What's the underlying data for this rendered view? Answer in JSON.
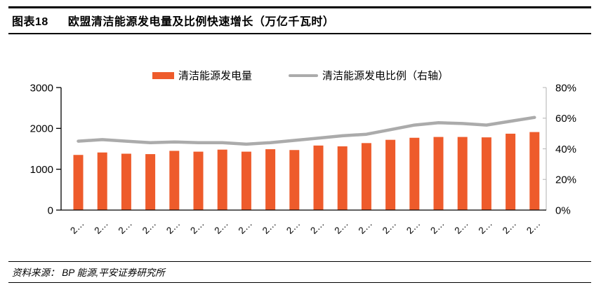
{
  "header": {
    "tag": "图表18",
    "title": "欧盟清洁能源发电量及比例快速增长（万亿千瓦时）"
  },
  "legend": {
    "bars_label": "清洁能源发电量",
    "line_label": "清洁能源发电比例（右轴）"
  },
  "chart_data": {
    "type": "bar",
    "title": "欧盟清洁能源发电量及比例快速增长（万亿千瓦时）",
    "categories": [
      "2…",
      "2…",
      "2…",
      "2…",
      "2…",
      "2…",
      "2…",
      "2…",
      "2…",
      "2…",
      "2…",
      "2…",
      "2…",
      "2…",
      "2…",
      "2…",
      "2…",
      "2…",
      "2…",
      "2…"
    ],
    "series": [
      {
        "name": "清洁能源发电量",
        "type": "bar",
        "axis": "left",
        "values": [
          1350,
          1410,
          1380,
          1370,
          1450,
          1430,
          1480,
          1430,
          1490,
          1470,
          1580,
          1560,
          1640,
          1720,
          1770,
          1790,
          1790,
          1780,
          1870,
          1910
        ]
      },
      {
        "name": "清洁能源发电比例（右轴）",
        "type": "line",
        "axis": "right",
        "values": [
          45,
          46,
          45,
          44,
          44.5,
          44,
          44,
          43,
          44,
          45.5,
          47,
          48.5,
          49.5,
          52.5,
          55.5,
          57,
          56.5,
          55.5,
          58,
          60.5
        ]
      }
    ],
    "left_axis": {
      "min": 0,
      "max": 3000,
      "ticks": [
        "3000",
        "2000",
        "1000",
        "0"
      ]
    },
    "right_axis": {
      "min": 0,
      "max": 80,
      "ticks": [
        "80%",
        "60%",
        "40%",
        "20%",
        "0%"
      ]
    },
    "grid": false,
    "legend_position": "top"
  },
  "footer": {
    "source": "资料来源： BP 能源,平安证券研究所"
  },
  "colors": {
    "bar": "#EE5B2B",
    "line": "#ABABAB",
    "axis": "#000000",
    "right_axis_line": "#BFBFBF",
    "text": "#000000"
  }
}
